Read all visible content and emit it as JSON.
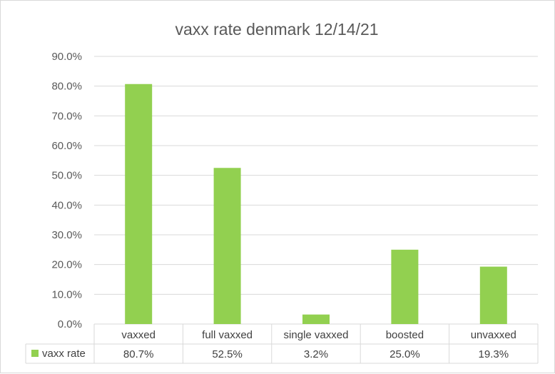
{
  "chart_data": {
    "type": "bar",
    "title": "vaxx rate denmark 12/14/21",
    "categories": [
      "vaxxed",
      "full vaxxed",
      "single vaxxed",
      "boosted",
      "unvaxxed"
    ],
    "series": [
      {
        "name": "vaxx rate",
        "values": [
          80.7,
          52.5,
          3.2,
          25.0,
          19.3
        ],
        "color": "#92d050"
      }
    ],
    "data_labels": [
      "80.7%",
      "52.5%",
      "3.2%",
      "25.0%",
      "19.3%"
    ],
    "ylim": [
      0,
      90
    ],
    "y_ticks": [
      0,
      10,
      20,
      30,
      40,
      50,
      60,
      70,
      80,
      90
    ],
    "y_tick_labels": [
      "0.0%",
      "10.0%",
      "20.0%",
      "30.0%",
      "40.0%",
      "50.0%",
      "60.0%",
      "70.0%",
      "80.0%",
      "90.0%"
    ],
    "grid": true,
    "legend": "data-table",
    "gridline_color": "#d9d9d9"
  }
}
